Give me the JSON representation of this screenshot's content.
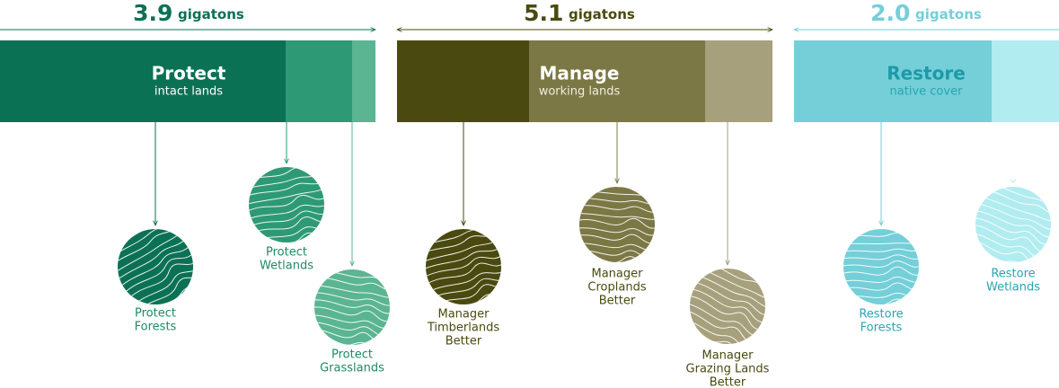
{
  "groups": [
    {
      "amount": "3.9",
      "unit": "gigatons",
      "title": "Protect",
      "subtitle": "intact lands",
      "items": [
        {
          "label": [
            "Protect",
            "Forests"
          ]
        },
        {
          "label": [
            "Protect",
            "Wetlands"
          ]
        },
        {
          "label": [
            "Protect",
            "Grasslands"
          ]
        }
      ]
    },
    {
      "amount": "5.1",
      "unit": "gigatons",
      "title": "Manage",
      "subtitle": "working lands",
      "items": [
        {
          "label": [
            "Manager",
            "Timberlands",
            "Better"
          ]
        },
        {
          "label": [
            "Manager",
            "Croplands",
            "Better"
          ]
        },
        {
          "label": [
            "Manager",
            "Grazing Lands",
            "Better"
          ]
        }
      ]
    },
    {
      "amount": "2.0",
      "unit": "gigatons",
      "title": "Restore",
      "subtitle": "native cover",
      "items": [
        {
          "label": [
            "Restore",
            "Forests"
          ]
        },
        {
          "label": [
            "Restore",
            "Wetlands"
          ]
        }
      ]
    }
  ]
}
